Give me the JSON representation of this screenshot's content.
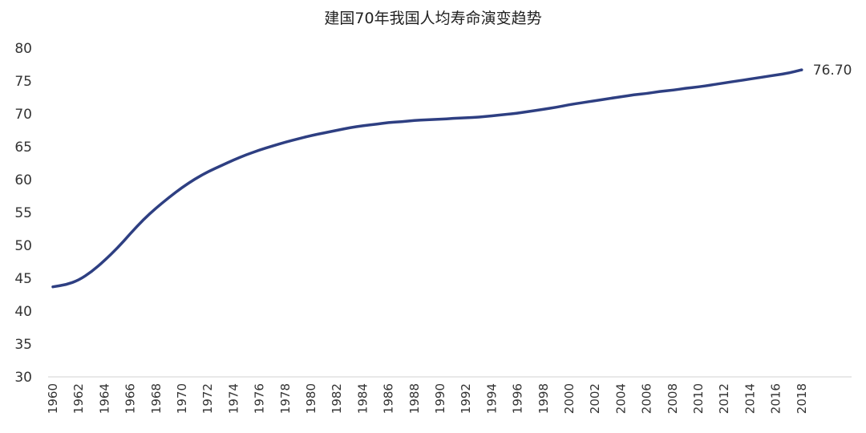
{
  "chart_data": {
    "type": "line",
    "title": "建国70年我国人均寿命演变趋势",
    "xlabel": "",
    "ylabel": "",
    "ylim": [
      30,
      80
    ],
    "yticks": [
      30,
      35,
      40,
      45,
      50,
      55,
      60,
      65,
      70,
      75,
      80
    ],
    "xticks": [
      "1960",
      "1962",
      "1964",
      "1966",
      "1968",
      "1970",
      "1972",
      "1974",
      "1976",
      "1978",
      "1980",
      "1982",
      "1984",
      "1986",
      "1988",
      "1990",
      "1992",
      "1994",
      "1996",
      "1998",
      "2000",
      "2002",
      "2004",
      "2006",
      "2008",
      "2010",
      "2012",
      "2014",
      "2016",
      "2018"
    ],
    "grid": false,
    "line_color": "#2e3f82",
    "series": [
      {
        "x": [
          1960,
          1961,
          1962,
          1963,
          1964,
          1965,
          1966,
          1967,
          1968,
          1969,
          1970,
          1971,
          1972,
          1973,
          1974,
          1975,
          1976,
          1977,
          1978,
          1979,
          1980,
          1981,
          1982,
          1983,
          1984,
          1985,
          1986,
          1987,
          1988,
          1989,
          1990,
          1991,
          1992,
          1993,
          1994,
          1995,
          1996,
          1997,
          1998,
          1999,
          2000,
          2001,
          2002,
          2003,
          2004,
          2005,
          2006,
          2007,
          2008,
          2009,
          2010,
          2011,
          2012,
          2013,
          2014,
          2015,
          2016,
          2017,
          2018
        ],
        "values": [
          43.7,
          44.0,
          44.7,
          46.0,
          47.7,
          49.6,
          51.8,
          53.9,
          55.7,
          57.3,
          58.8,
          60.1,
          61.2,
          62.1,
          63.0,
          63.8,
          64.5,
          65.1,
          65.7,
          66.2,
          66.7,
          67.1,
          67.5,
          67.9,
          68.2,
          68.4,
          68.7,
          68.8,
          69.0,
          69.1,
          69.2,
          69.3,
          69.4,
          69.5,
          69.7,
          69.9,
          70.1,
          70.4,
          70.7,
          71.0,
          71.4,
          71.7,
          72.0,
          72.3,
          72.6,
          72.9,
          73.1,
          73.4,
          73.6,
          73.9,
          74.1,
          74.4,
          74.7,
          75.0,
          75.3,
          75.6,
          75.9,
          76.2,
          76.7
        ]
      }
    ],
    "annotation": {
      "x": 2018,
      "value": 76.7,
      "text": "76.70"
    }
  }
}
